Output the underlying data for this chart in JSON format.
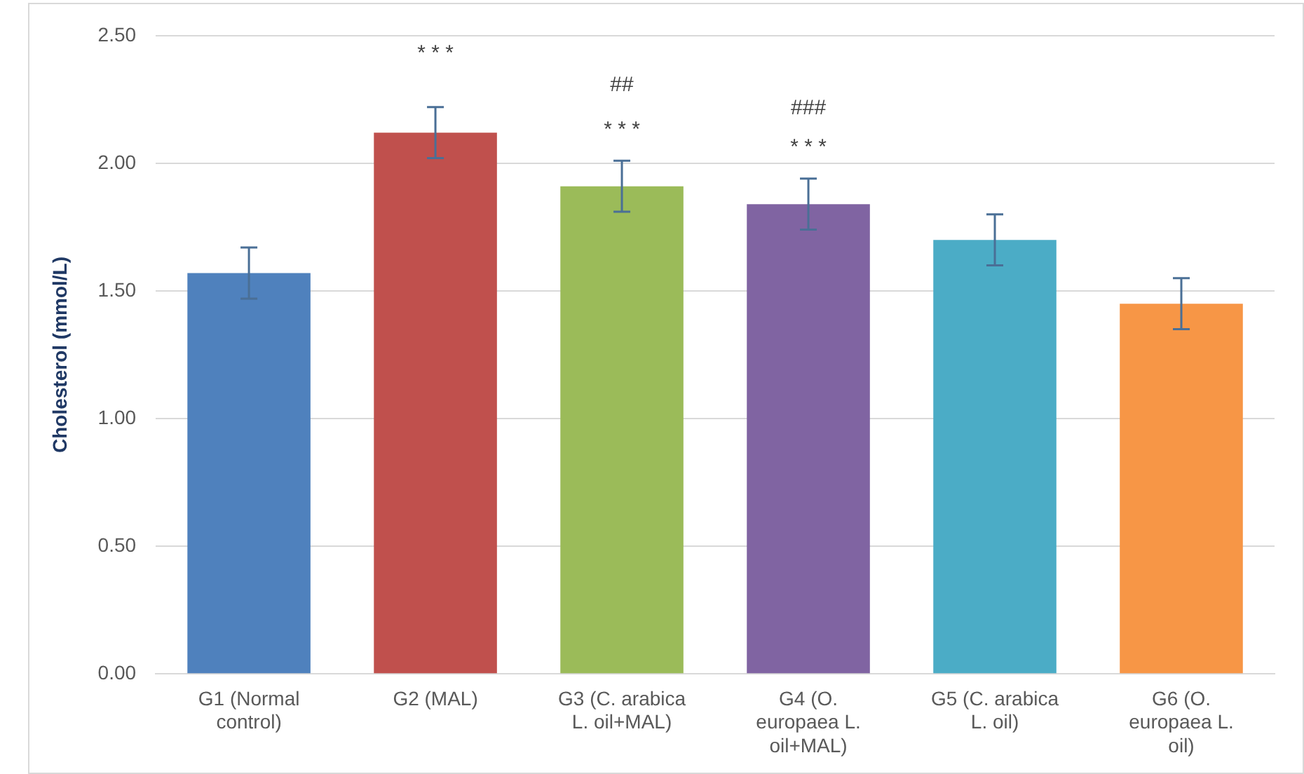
{
  "chart_data": {
    "type": "bar",
    "ylabel": "Cholesterol (mmol/L)",
    "categories": [
      "G1 (Normal control)",
      "G2 (MAL)",
      "G3 (C. arabica L. oil+MAL)",
      "G4 (O. europaea L. oil+MAL)",
      "G5 (C. arabica L. oil)",
      "G6 (O. europaea L. oil)"
    ],
    "values": [
      1.57,
      2.12,
      1.91,
      1.84,
      1.7,
      1.45
    ],
    "errors": [
      0.1,
      0.1,
      0.1,
      0.1,
      0.1,
      0.1
    ],
    "colors": [
      "#4f81bd",
      "#c0504d",
      "#9bbb59",
      "#8064a2",
      "#4bacc6",
      "#f79646"
    ],
    "ylim": [
      0,
      2.5
    ],
    "yticks": [
      {
        "value": 0,
        "label": "0.00"
      },
      {
        "value": 0.5,
        "label": "0.50"
      },
      {
        "value": 1,
        "label": "1.00"
      },
      {
        "value": 1.5,
        "label": "1.50"
      },
      {
        "value": 2,
        "label": "2.00"
      },
      {
        "value": 2.5,
        "label": "2.50"
      }
    ],
    "grid": "y",
    "legend": false,
    "annotations": [
      "* * *",
      "##",
      "* * *",
      "###",
      "* * *"
    ]
  }
}
